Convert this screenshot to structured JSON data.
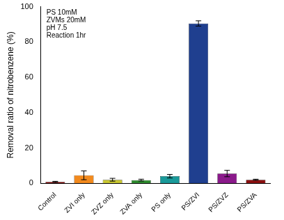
{
  "chart_data": {
    "type": "bar",
    "y_label": "Removal ratio of nitrobenzene (%)",
    "categories": [
      "Control",
      "ZVI only",
      "ZVZ only",
      "ZVA only",
      "PS only",
      "PS/ZVI",
      "PS/ZVZ",
      "PS/ZVA"
    ],
    "values": [
      0.8,
      4.5,
      2.0,
      1.8,
      4.0,
      90.5,
      5.5,
      2.0
    ],
    "errors": [
      0.3,
      2.5,
      0.8,
      0.5,
      1.0,
      1.5,
      1.8,
      0.3
    ],
    "colors": [
      "#8b0a0a",
      "#f28a1e",
      "#c9c832",
      "#2e8b2e",
      "#1a9a9a",
      "#1f3f8f",
      "#8b1a8b",
      "#8b1010"
    ],
    "ylim": [
      0,
      100
    ],
    "yticks": [
      0,
      20,
      40,
      60,
      80,
      100
    ],
    "grid": false,
    "annotations": [
      "PS 10mM",
      "ZVMs 20mM",
      "pH 7.5",
      "Reaction 1hr"
    ]
  }
}
